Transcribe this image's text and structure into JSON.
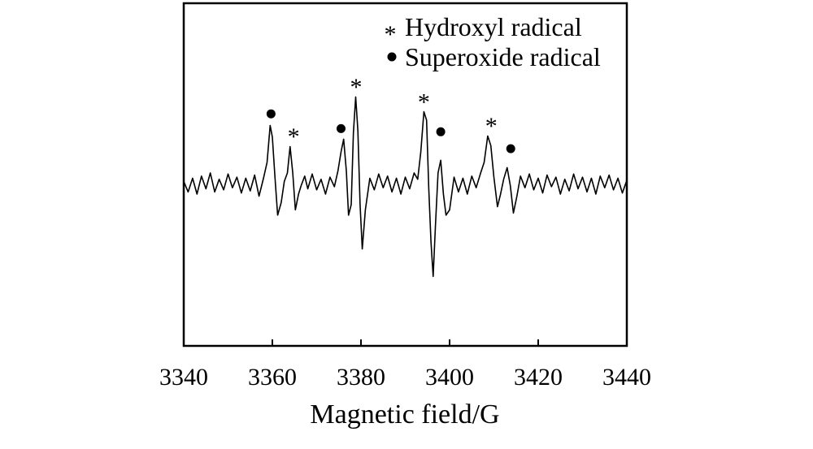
{
  "chart_data": {
    "type": "line",
    "title": "",
    "xlabel": "Magnetic field/G",
    "ylabel": "",
    "xlim": [
      3340,
      3440
    ],
    "ylim": [
      -1.0,
      1.0
    ],
    "xticks": [
      3340,
      3360,
      3380,
      3400,
      3420,
      3440
    ],
    "xtick_labels": [
      "3340",
      "3360",
      "3380",
      "3400",
      "3420",
      "3440"
    ],
    "grid": false,
    "legend": {
      "placement": "top-right",
      "entries": [
        {
          "symbol": "*",
          "label": "Hydroxyl radical"
        },
        {
          "symbol": "•",
          "label": "Superoxide radical"
        }
      ]
    },
    "series": [
      {
        "x": [
          3340,
          3341,
          3342,
          3343,
          3344,
          3345,
          3346,
          3347,
          3348,
          3349,
          3350,
          3351,
          3352,
          3353,
          3354,
          3355,
          3356,
          3357,
          3358,
          3358.8,
          3359.5,
          3360,
          3360.6,
          3361.2,
          3362,
          3362.7,
          3363.4,
          3364,
          3364.6,
          3365.2,
          3365.9,
          3366.5,
          3367.3,
          3368,
          3369,
          3370,
          3371,
          3372,
          3373,
          3374,
          3374.8,
          3375.5,
          3376.1,
          3376.7,
          3377.2,
          3377.8,
          3378.3,
          3378.8,
          3379.3,
          3379.8,
          3380.3,
          3381,
          3382,
          3383,
          3384,
          3385,
          3386,
          3387,
          3388,
          3389,
          3390,
          3391,
          3392,
          3392.8,
          3393.5,
          3394.2,
          3394.8,
          3395.3,
          3395.8,
          3396.3,
          3396.8,
          3397.4,
          3398,
          3398.6,
          3399.2,
          3400,
          3401,
          3402,
          3403,
          3404,
          3405,
          3406,
          3407,
          3407.8,
          3408.6,
          3409.3,
          3410,
          3410.8,
          3411.5,
          3412.2,
          3413,
          3413.7,
          3414.4,
          3415.2,
          3416,
          3417,
          3418,
          3419,
          3420,
          3421,
          3422,
          3423,
          3424,
          3425,
          3426,
          3427,
          3428,
          3429,
          3430,
          3431,
          3432,
          3433,
          3434,
          3435,
          3436,
          3437,
          3438,
          3439,
          3440
        ],
        "values": [
          0.02,
          -0.08,
          0.05,
          -0.1,
          0.07,
          -0.05,
          0.1,
          -0.08,
          0.04,
          -0.06,
          0.09,
          -0.04,
          0.06,
          -0.09,
          0.05,
          -0.07,
          0.08,
          -0.12,
          0.05,
          0.2,
          0.55,
          0.44,
          0.05,
          -0.3,
          -0.18,
          0.02,
          0.1,
          0.35,
          0.1,
          -0.25,
          -0.1,
          -0.02,
          0.07,
          -0.05,
          0.09,
          -0.06,
          0.04,
          -0.1,
          0.06,
          -0.03,
          0.12,
          0.3,
          0.42,
          0.12,
          -0.3,
          -0.2,
          0.48,
          0.82,
          0.5,
          -0.2,
          -0.62,
          -0.25,
          0.05,
          -0.06,
          0.09,
          -0.04,
          0.07,
          -0.08,
          0.05,
          -0.1,
          0.06,
          -0.05,
          0.1,
          0.04,
          0.3,
          0.68,
          0.6,
          -0.05,
          -0.55,
          -0.88,
          -0.4,
          0.1,
          0.22,
          -0.1,
          -0.3,
          -0.25,
          0.06,
          -0.08,
          0.05,
          -0.1,
          0.07,
          -0.04,
          0.1,
          0.2,
          0.45,
          0.36,
          0.06,
          -0.22,
          -0.1,
          0.04,
          0.15,
          -0.02,
          -0.28,
          -0.12,
          0.07,
          -0.04,
          0.09,
          -0.06,
          0.05,
          -0.09,
          0.08,
          -0.03,
          0.06,
          -0.1,
          0.04,
          -0.07,
          0.09,
          -0.05,
          0.06,
          -0.08,
          0.05,
          -0.1,
          0.07,
          -0.04,
          0.08,
          -0.06,
          0.05,
          -0.09,
          0.03
        ]
      }
    ],
    "annotations": [
      {
        "symbol": "•",
        "x": 3359.7,
        "y": 0.66
      },
      {
        "symbol": "*",
        "x": 3364.8,
        "y": 0.46
      },
      {
        "symbol": "•",
        "x": 3375.5,
        "y": 0.52
      },
      {
        "symbol": "*",
        "x": 3378.9,
        "y": 0.93
      },
      {
        "symbol": "*",
        "x": 3394.2,
        "y": 0.79
      },
      {
        "symbol": "•",
        "x": 3398.0,
        "y": 0.49
      },
      {
        "symbol": "*",
        "x": 3409.4,
        "y": 0.56
      },
      {
        "symbol": "•",
        "x": 3413.8,
        "y": 0.33
      }
    ]
  }
}
